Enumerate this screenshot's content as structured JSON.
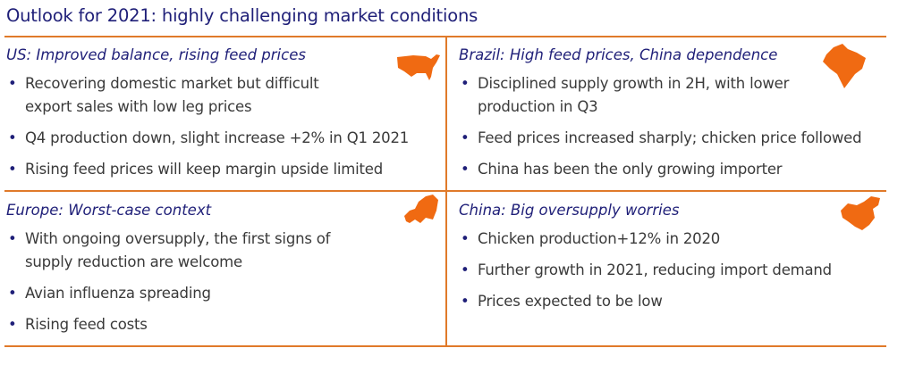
{
  "title": "Outlook for 2021: highly challenging market conditions",
  "accent_color": "#e07a2a",
  "heading_color": "#1f1f78",
  "quadrants": [
    {
      "heading": "US: Improved balance, rising feed prices",
      "icon": "usa-map-icon",
      "bullets": [
        "Recovering domestic market but difficult export sales with low leg prices",
        "Q4 production down, slight increase +2% in Q1 2021",
        "Rising feed prices will keep margin upside limited"
      ]
    },
    {
      "heading": "Brazil: High feed prices, China dependence",
      "icon": "brazil-map-icon",
      "bullets": [
        "Disciplined supply growth in 2H, with lower production in Q3",
        "Feed prices increased sharply; chicken price followed",
        "China has been the only growing importer"
      ]
    },
    {
      "heading": "Europe: Worst-case context",
      "icon": "europe-map-icon",
      "bullets": [
        "With ongoing oversupply, the first signs of supply reduction are welcome",
        "Avian influenza spreading",
        "Rising feed costs"
      ]
    },
    {
      "heading": "China: Big oversupply worries",
      "icon": "china-map-icon",
      "bullets": [
        "Chicken production+12% in 2020",
        "Further growth in 2021, reducing import demand",
        "Prices expected to be low"
      ]
    }
  ]
}
